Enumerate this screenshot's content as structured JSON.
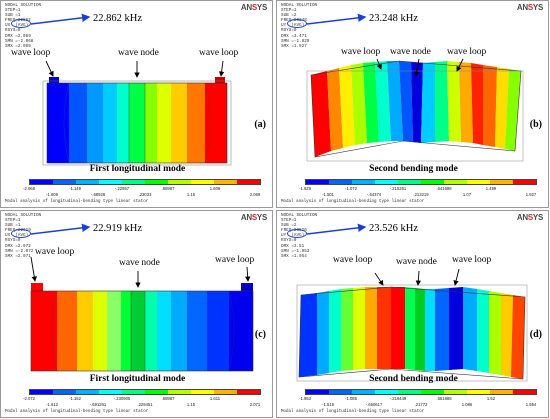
{
  "panels": [
    {
      "id": "a",
      "info": [
        "NODAL SOLUTION",
        "STEP=1",
        "SUB =1",
        "FREQ=22862",
        "UX  (AVG)",
        "RSYS=0",
        "DMX =2.069",
        "SMN =-2.068",
        "SMX =2.069"
      ],
      "freq": "22.862 kHz",
      "letter": "(a)",
      "mode": "First longitudinal mode",
      "labels": [
        "wave loop",
        "wave node",
        "wave loop"
      ],
      "ticks_top": [
        "-2.068",
        "-1.149",
        "-.22957",
        ".68987",
        "1.609"
      ],
      "ticks_bottom": [
        "-1.609",
        "-.68928",
        ".23033",
        "1.15",
        "2.069"
      ]
    },
    {
      "id": "b",
      "info": [
        "NODAL SOLUTION",
        "STEP=1",
        "SUB =2",
        "FREQ=23248",
        "UY  (AVG)",
        "RSYS=0",
        "DMX =3.471",
        "SMN =-1.929",
        "SMX =1.927"
      ],
      "freq": "23.248 kHz",
      "letter": "(b)",
      "mode": "Second bending mode",
      "labels": [
        "wave loop",
        "wave node",
        "wave loop"
      ],
      "ticks_top": [
        "-1.929",
        "-1.072",
        "-.215261",
        ".641698",
        "1.499"
      ],
      "ticks_bottom": [
        "-1.501",
        "-.64374",
        ".213219",
        "1.07",
        "1.927"
      ]
    },
    {
      "id": "c",
      "info": [
        "NODAL SOLUTION",
        "STEP=1",
        "SUB =1",
        "FREQ=22919",
        "UX  (AVG)",
        "RSYS=0",
        "DMX =2.072",
        "SMN =-2.072",
        "SMX =2.071"
      ],
      "freq": "22.919 kHz",
      "letter": "(c)",
      "mode": "First longitudinal mode",
      "labels": [
        "wave loop",
        "wave node",
        "wave loop"
      ],
      "ticks_top": [
        "-2.072",
        "-1.152",
        "-.230905",
        ".68987",
        "1.611"
      ],
      "ticks_bottom": [
        "-1.612",
        "-.691261",
        ".229451",
        "1.15",
        "2.071"
      ]
    },
    {
      "id": "d",
      "info": [
        "NODAL SOLUTION",
        "STEP=1",
        "SUB =2",
        "FREQ=23526",
        "UY  (AVG)",
        "RSYS=0",
        "DMX =3.51",
        "SMN =-1.953",
        "SMX =1.954"
      ],
      "freq": "23.526 kHz",
      "letter": "(d)",
      "mode": "Second bending mode",
      "labels": [
        "wave loop",
        "wave node",
        "wave loop"
      ],
      "ticks_top": [
        "-1.953",
        "-1.085",
        "-.216449",
        ".651888",
        "1.52"
      ],
      "ticks_bottom": [
        "-1.519",
        "-.65061?",
        ".21772",
        "1.086",
        "1.954"
      ]
    }
  ],
  "caption": "Modal analysis of longitudinal-bending type linear stator",
  "logo": "ANSYS",
  "colors": {
    "contour": [
      "#0000ff",
      "#0066ff",
      "#00b3ff",
      "#00ffff",
      "#00ff80",
      "#00ff00",
      "#b3ff00",
      "#ffff00",
      "#ffb300",
      "#ff0000"
    ],
    "annotation_blue": "#1b3fd6"
  }
}
